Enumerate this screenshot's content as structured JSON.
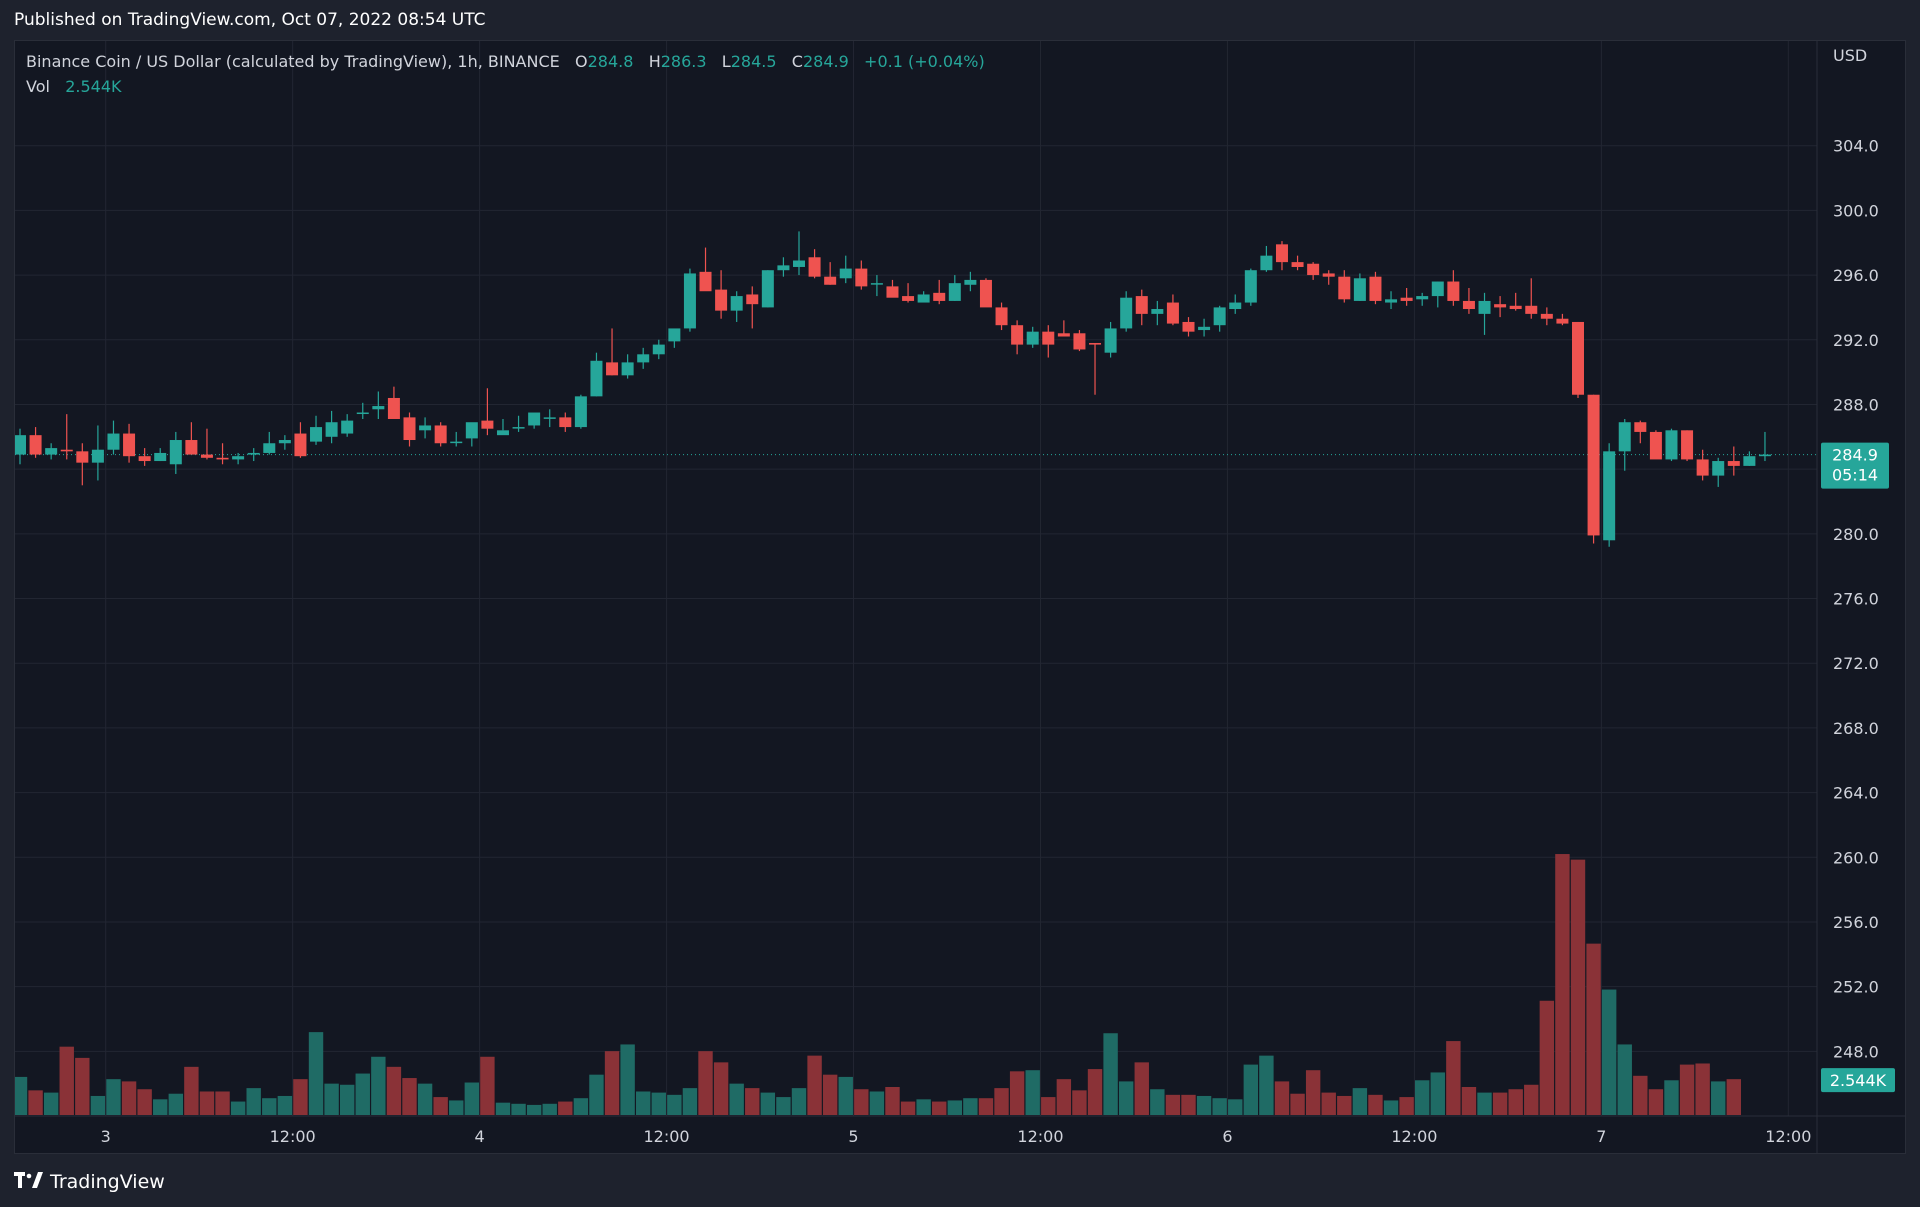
{
  "header": {
    "published": "Published on TradingView.com, Oct 07, 2022 08:54 UTC"
  },
  "legend": {
    "symbol": "Binance Coin / US Dollar (calculated by TradingView), 1h, BINANCE",
    "o_label": "O",
    "o_value": "284.8",
    "h_label": "H",
    "h_value": "286.3",
    "l_label": "L",
    "l_value": "284.5",
    "c_label": "C",
    "c_value": "284.9",
    "change": "+0.1 (+0.04%)",
    "vol_label": "Vol",
    "vol_value": "2.544K"
  },
  "brand": {
    "name": "TradingView",
    "logo_icon": "tradingview-logo-icon"
  },
  "colors": {
    "up": "#26a69a",
    "down": "#ef5350",
    "vol_up": "#1f6b65",
    "vol_down": "#8a3237",
    "grid": "#222632",
    "axis_text": "#d1d4dc",
    "background": "#131722"
  },
  "chart_data": {
    "type": "candlestick",
    "title": "Binance Coin / US Dollar (calculated by TradingView), 1h, BINANCE",
    "ylabel": "USD",
    "ylim": [
      244.0,
      308.0
    ],
    "y_ticks": [
      "304.0",
      "300.0",
      "296.0",
      "292.0",
      "288.0",
      "284.0",
      "280.0",
      "276.0",
      "272.0",
      "268.0",
      "264.0",
      "260.0",
      "256.0",
      "252.0",
      "248.0"
    ],
    "x_ticks": [
      {
        "label": "3",
        "bar": 5.5
      },
      {
        "label": "12:00",
        "bar": 17.5
      },
      {
        "label": "4",
        "bar": 29.5
      },
      {
        "label": "12:00",
        "bar": 41.5
      },
      {
        "label": "5",
        "bar": 53.5
      },
      {
        "label": "12:00",
        "bar": 65.5
      },
      {
        "label": "6",
        "bar": 77.5
      },
      {
        "label": "12:00",
        "bar": 89.5
      },
      {
        "label": "7",
        "bar": 101.5
      },
      {
        "label": "12:00",
        "bar": 113.5
      }
    ],
    "last_price_label": "284.9",
    "countdown_label": "05:14",
    "last_volume_label": "2.544K",
    "last_price": 284.9,
    "ohlc": [
      [
        284.9,
        286.5,
        284.3,
        286.1
      ],
      [
        286.1,
        286.6,
        284.7,
        284.9
      ],
      [
        284.9,
        285.6,
        284.6,
        285.3
      ],
      [
        285.2,
        287.4,
        284.6,
        285.1
      ],
      [
        285.1,
        285.6,
        283.0,
        284.4
      ],
      [
        284.4,
        286.7,
        283.3,
        285.2
      ],
      [
        285.2,
        287.0,
        284.9,
        286.2
      ],
      [
        286.2,
        286.8,
        284.4,
        284.8
      ],
      [
        284.8,
        285.3,
        284.2,
        284.5
      ],
      [
        284.5,
        285.3,
        284.5,
        285.0
      ],
      [
        284.3,
        286.3,
        283.7,
        285.8
      ],
      [
        285.8,
        286.9,
        284.9,
        284.9
      ],
      [
        284.9,
        286.5,
        284.6,
        284.7
      ],
      [
        284.7,
        285.6,
        284.3,
        284.6
      ],
      [
        284.6,
        285.0,
        284.3,
        284.8
      ],
      [
        284.9,
        285.3,
        284.5,
        285.0
      ],
      [
        285.0,
        286.3,
        284.9,
        285.6
      ],
      [
        285.6,
        286.1,
        285.2,
        285.8
      ],
      [
        286.2,
        286.9,
        284.7,
        284.8
      ],
      [
        285.7,
        287.3,
        285.5,
        286.6
      ],
      [
        286.0,
        287.6,
        285.6,
        286.9
      ],
      [
        286.2,
        287.4,
        286.0,
        287.0
      ],
      [
        287.5,
        288.1,
        287.1,
        287.5
      ],
      [
        287.7,
        288.8,
        287.1,
        287.9
      ],
      [
        288.4,
        289.1,
        287.2,
        287.1
      ],
      [
        287.2,
        287.5,
        285.4,
        285.8
      ],
      [
        286.4,
        287.2,
        285.9,
        286.7
      ],
      [
        286.7,
        286.9,
        285.4,
        285.6
      ],
      [
        285.7,
        286.3,
        285.4,
        285.7
      ],
      [
        285.9,
        286.4,
        285.4,
        286.9
      ],
      [
        287.0,
        289.0,
        286.1,
        286.5
      ],
      [
        286.1,
        287.1,
        286.4,
        286.4
      ],
      [
        286.6,
        287.3,
        286.3,
        286.6
      ],
      [
        286.7,
        287.3,
        286.5,
        287.5
      ],
      [
        287.2,
        287.7,
        286.6,
        287.2
      ],
      [
        287.2,
        287.5,
        286.3,
        286.6
      ],
      [
        286.6,
        288.6,
        286.5,
        288.5
      ],
      [
        288.5,
        291.2,
        288.5,
        290.7
      ],
      [
        290.6,
        292.7,
        289.8,
        289.8
      ],
      [
        289.8,
        291.1,
        289.6,
        290.6
      ],
      [
        290.6,
        291.5,
        290.2,
        291.1
      ],
      [
        291.1,
        292.0,
        290.8,
        291.7
      ],
      [
        291.9,
        292.2,
        291.5,
        292.7
      ],
      [
        292.7,
        296.4,
        292.5,
        296.1
      ],
      [
        296.2,
        297.7,
        295.1,
        295.0
      ],
      [
        295.1,
        296.3,
        293.3,
        293.8
      ],
      [
        293.8,
        295.0,
        293.1,
        294.7
      ],
      [
        294.8,
        295.3,
        292.7,
        294.2
      ],
      [
        294.0,
        296.3,
        294.0,
        296.3
      ],
      [
        296.3,
        297.1,
        295.9,
        296.6
      ],
      [
        296.5,
        298.7,
        296.0,
        296.9
      ],
      [
        297.1,
        297.6,
        295.8,
        295.9
      ],
      [
        295.9,
        296.8,
        295.4,
        295.4
      ],
      [
        295.8,
        297.2,
        295.5,
        296.4
      ],
      [
        296.4,
        296.9,
        295.1,
        295.3
      ],
      [
        295.5,
        296.0,
        294.7,
        295.5
      ],
      [
        295.3,
        295.7,
        294.9,
        294.6
      ],
      [
        294.7,
        295.5,
        294.3,
        294.4
      ],
      [
        294.3,
        295.0,
        294.5,
        294.8
      ],
      [
        294.9,
        295.7,
        294.2,
        294.4
      ],
      [
        294.4,
        296.0,
        294.4,
        295.5
      ],
      [
        295.4,
        296.2,
        295.0,
        295.7
      ],
      [
        295.7,
        295.8,
        294.1,
        294.0
      ],
      [
        294.0,
        294.3,
        292.6,
        292.9
      ],
      [
        292.9,
        293.2,
        291.1,
        291.7
      ],
      [
        291.7,
        292.8,
        291.5,
        292.5
      ],
      [
        292.5,
        292.9,
        290.9,
        291.7
      ],
      [
        292.4,
        293.2,
        292.2,
        292.2
      ],
      [
        292.4,
        292.6,
        291.3,
        291.4
      ],
      [
        291.8,
        291.8,
        288.6,
        291.7
      ],
      [
        291.2,
        293.1,
        290.9,
        292.7
      ],
      [
        292.7,
        295.0,
        292.5,
        294.6
      ],
      [
        294.7,
        295.1,
        292.9,
        293.6
      ],
      [
        293.6,
        294.4,
        292.9,
        293.9
      ],
      [
        294.3,
        294.8,
        292.9,
        293.0
      ],
      [
        293.1,
        293.4,
        292.2,
        292.5
      ],
      [
        292.6,
        293.3,
        292.2,
        292.8
      ],
      [
        292.9,
        294.1,
        292.5,
        294.0
      ],
      [
        293.9,
        294.8,
        293.6,
        294.3
      ],
      [
        294.3,
        296.4,
        294.1,
        296.3
      ],
      [
        296.3,
        297.8,
        296.2,
        297.2
      ],
      [
        297.9,
        298.1,
        296.3,
        296.8
      ],
      [
        296.8,
        297.2,
        296.3,
        296.5
      ],
      [
        296.7,
        296.8,
        295.7,
        296.0
      ],
      [
        296.1,
        296.3,
        295.4,
        295.9
      ],
      [
        295.9,
        296.3,
        294.3,
        294.5
      ],
      [
        294.4,
        296.1,
        294.4,
        295.8
      ],
      [
        295.9,
        296.2,
        294.2,
        294.4
      ],
      [
        294.3,
        295.0,
        293.9,
        294.5
      ],
      [
        294.6,
        295.2,
        294.1,
        294.4
      ],
      [
        294.5,
        294.9,
        294.1,
        294.7
      ],
      [
        294.7,
        295.6,
        294.0,
        295.6
      ],
      [
        295.6,
        296.3,
        294.1,
        294.4
      ],
      [
        294.4,
        295.2,
        293.6,
        293.9
      ],
      [
        293.6,
        294.9,
        292.3,
        294.4
      ],
      [
        294.2,
        294.7,
        293.4,
        294.0
      ],
      [
        294.1,
        294.9,
        293.8,
        293.9
      ],
      [
        294.1,
        295.8,
        293.3,
        293.6
      ],
      [
        293.6,
        294.0,
        292.9,
        293.3
      ],
      [
        293.3,
        293.6,
        292.9,
        293.0
      ],
      [
        293.1,
        293.1,
        288.4,
        288.6
      ],
      [
        288.6,
        288.6,
        279.4,
        279.9
      ],
      [
        279.6,
        285.6,
        279.2,
        285.1
      ],
      [
        285.1,
        287.1,
        283.9,
        286.9
      ],
      [
        286.9,
        287.0,
        285.6,
        286.3
      ],
      [
        286.3,
        286.4,
        284.7,
        284.6
      ],
      [
        284.6,
        286.5,
        284.5,
        286.4
      ],
      [
        286.4,
        286.4,
        284.5,
        284.6
      ],
      [
        284.6,
        285.2,
        283.3,
        283.6
      ],
      [
        283.6,
        284.7,
        282.9,
        284.5
      ],
      [
        284.5,
        285.4,
        283.6,
        284.2
      ],
      [
        284.2,
        285.1,
        284.2,
        284.8
      ],
      [
        284.8,
        286.3,
        284.5,
        284.9
      ]
    ],
    "volume": [
      0.34,
      0.22,
      0.2,
      0.61,
      0.51,
      0.17,
      0.32,
      0.3,
      0.23,
      0.14,
      0.19,
      0.43,
      0.21,
      0.21,
      0.12,
      0.24,
      0.15,
      0.17,
      0.32,
      0.74,
      0.28,
      0.27,
      0.37,
      0.52,
      0.43,
      0.33,
      0.28,
      0.16,
      0.13,
      0.29,
      0.52,
      0.11,
      0.1,
      0.09,
      0.1,
      0.12,
      0.15,
      0.36,
      0.57,
      0.63,
      0.21,
      0.2,
      0.18,
      0.24,
      0.57,
      0.47,
      0.28,
      0.24,
      0.2,
      0.16,
      0.24,
      0.53,
      0.36,
      0.34,
      0.23,
      0.21,
      0.25,
      0.12,
      0.14,
      0.12,
      0.13,
      0.15,
      0.15,
      0.24,
      0.39,
      0.4,
      0.16,
      0.32,
      0.22,
      0.41,
      0.73,
      0.3,
      0.47,
      0.23,
      0.18,
      0.18,
      0.17,
      0.15,
      0.14,
      0.45,
      0.53,
      0.3,
      0.19,
      0.4,
      0.2,
      0.17,
      0.24,
      0.18,
      0.13,
      0.16,
      0.31,
      0.38,
      0.66,
      0.25,
      0.2,
      0.2,
      0.23,
      0.27,
      1.02,
      2.33,
      2.28,
      1.53,
      1.12,
      0.63,
      0.35,
      0.23,
      0.31,
      0.45,
      0.46,
      0.3,
      0.32
    ]
  }
}
